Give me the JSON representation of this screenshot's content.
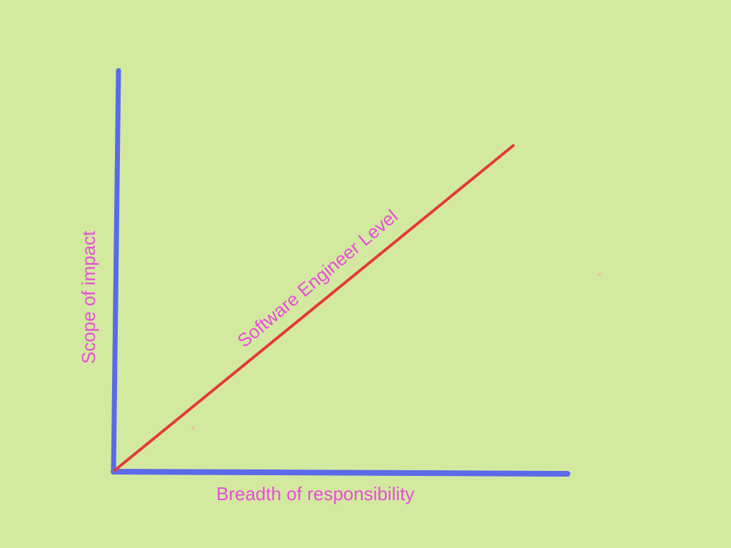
{
  "diagram": {
    "x_axis_label": "Breadth of responsibility",
    "y_axis_label": "Scope of impact",
    "line_label": "Software Engineer Level",
    "colors": {
      "background": "#d4e9a0",
      "axes": "#5b6ae8",
      "trend_line": "#e23b36",
      "text": "#e64fd8"
    }
  }
}
